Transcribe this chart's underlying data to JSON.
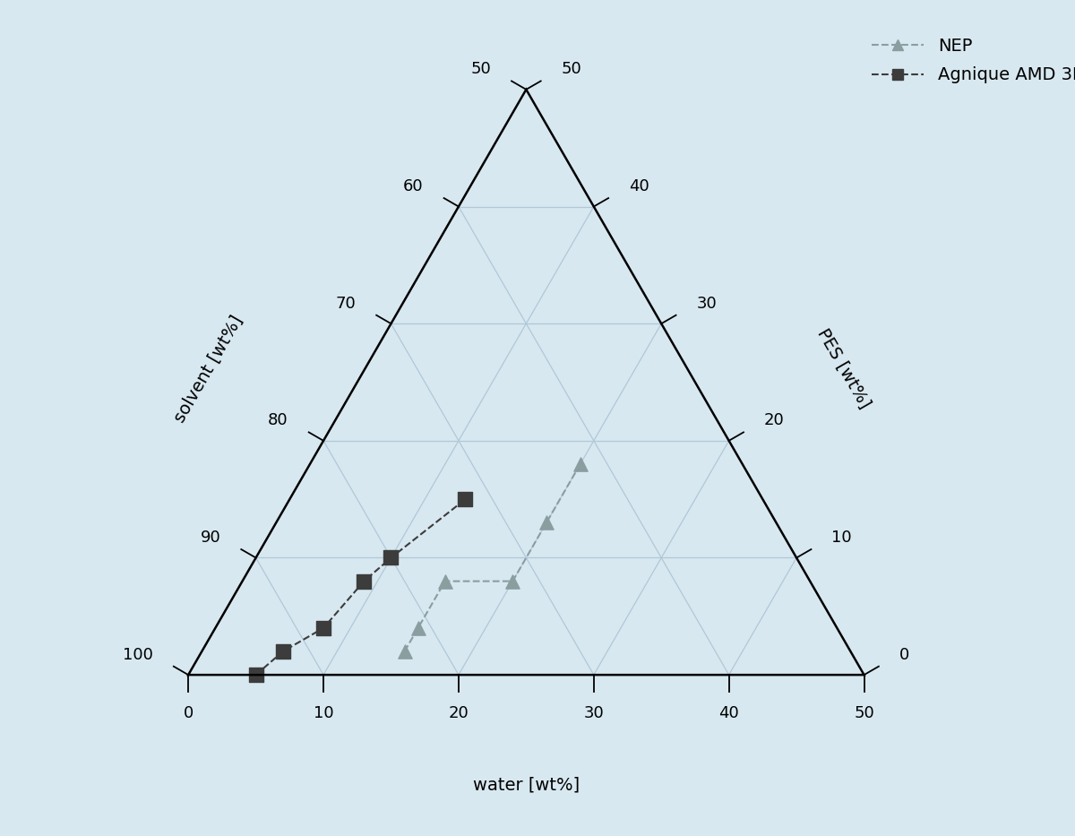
{
  "background_color": "#d8e8f0",
  "triangle_color": "#000000",
  "grid_color": "#b0c8d8",
  "axis_label_water": "water [wt%]",
  "axis_label_solvent": "solvent [wt%]",
  "axis_label_PES": "PES [wt%]",
  "nep_color": "#8a9ea0",
  "amd_color": "#3c3c3c",
  "nep_points": [
    [
      15,
      2
    ],
    [
      15,
      4
    ],
    [
      15,
      8
    ],
    [
      20,
      8
    ],
    [
      20,
      13
    ],
    [
      20,
      18
    ]
  ],
  "amd_points": [
    [
      5,
      0
    ],
    [
      6,
      2
    ],
    [
      8,
      4
    ],
    [
      9,
      8
    ],
    [
      10,
      10
    ],
    [
      13,
      15
    ]
  ],
  "label_fontsize": 14,
  "tick_fontsize": 13,
  "legend_fontsize": 14
}
